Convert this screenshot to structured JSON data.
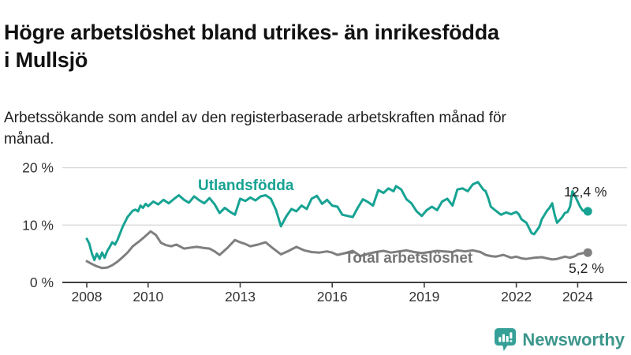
{
  "header": {
    "title": "Högre arbetslöshet bland utrikes- än inrikesfödda i Mullsjö",
    "subtitle": "Arbetssökande som andel av den registerbaserade arbetskraften månad för månad."
  },
  "chart_data": {
    "type": "line",
    "title": "Högre arbetslöshet bland utrikes- än inrikesfödda i Mullsjö",
    "xlabel": "",
    "ylabel": "",
    "ylim": [
      0,
      20
    ],
    "grid": "horizontal",
    "legend_position": "inline-labels",
    "x_ticks": [
      2008,
      2010,
      2013,
      2016,
      2019,
      2022,
      2024
    ],
    "x_tick_labels": [
      "2008",
      "2010",
      "2013",
      "2016",
      "2019",
      "2022",
      "2024"
    ],
    "y_ticks": [
      0,
      10,
      20
    ],
    "y_tick_labels": [
      "0 %",
      "10 %",
      "20 %"
    ],
    "series": [
      {
        "name": "Utlandsfödda",
        "color": "#17a393",
        "end_label": "12,4 %",
        "end_value": 12.4,
        "x": [
          2008.0,
          2008.08,
          2008.17,
          2008.25,
          2008.33,
          2008.42,
          2008.5,
          2008.58,
          2008.67,
          2008.75,
          2008.83,
          2008.92,
          2009.0,
          2009.17,
          2009.33,
          2009.5,
          2009.58,
          2009.67,
          2009.75,
          2009.83,
          2009.92,
          2010.0,
          2010.17,
          2010.33,
          2010.5,
          2010.67,
          2010.83,
          2011.0,
          2011.17,
          2011.33,
          2011.5,
          2011.67,
          2011.83,
          2012.0,
          2012.17,
          2012.33,
          2012.5,
          2012.67,
          2012.83,
          2013.0,
          2013.17,
          2013.33,
          2013.5,
          2013.67,
          2013.83,
          2014.0,
          2014.17,
          2014.33,
          2014.5,
          2014.67,
          2014.83,
          2015.0,
          2015.17,
          2015.33,
          2015.5,
          2015.67,
          2015.83,
          2016.0,
          2016.17,
          2016.33,
          2016.5,
          2016.67,
          2016.83,
          2017.0,
          2017.17,
          2017.33,
          2017.5,
          2017.67,
          2017.83,
          2018.0,
          2018.08,
          2018.25,
          2018.42,
          2018.58,
          2018.75,
          2018.92,
          2019.08,
          2019.25,
          2019.42,
          2019.58,
          2019.75,
          2019.92,
          2020.08,
          2020.25,
          2020.42,
          2020.58,
          2020.75,
          2020.92,
          2021.0,
          2021.08,
          2021.17,
          2021.33,
          2021.5,
          2021.67,
          2021.83,
          2022.0,
          2022.08,
          2022.17,
          2022.33,
          2022.5,
          2022.58,
          2022.75,
          2022.83,
          2023.0,
          2023.08,
          2023.17,
          2023.25,
          2023.33,
          2023.5,
          2023.58,
          2023.67,
          2023.75,
          2023.83,
          2023.92,
          2024.0,
          2024.08,
          2024.17,
          2024.33
        ],
        "values": [
          7.6,
          6.8,
          5.0,
          3.9,
          5.0,
          4.1,
          5.2,
          4.3,
          5.5,
          6.2,
          7.0,
          6.6,
          7.4,
          9.7,
          11.4,
          12.5,
          12.7,
          12.4,
          13.4,
          13.0,
          13.7,
          13.3,
          14.1,
          13.6,
          14.4,
          13.8,
          14.5,
          15.2,
          14.4,
          13.9,
          15.0,
          14.3,
          13.8,
          14.7,
          13.6,
          12.1,
          13.0,
          12.3,
          11.8,
          14.6,
          14.2,
          14.8,
          14.3,
          15.0,
          15.2,
          14.6,
          12.6,
          9.8,
          11.5,
          12.8,
          12.4,
          13.4,
          12.8,
          14.6,
          15.1,
          13.7,
          14.4,
          13.4,
          13.2,
          11.8,
          11.6,
          11.4,
          13.0,
          14.5,
          14.0,
          13.4,
          16.1,
          15.6,
          16.4,
          15.9,
          16.8,
          16.2,
          14.5,
          13.8,
          12.4,
          11.6,
          12.6,
          13.2,
          12.6,
          14.1,
          14.6,
          13.4,
          16.2,
          16.4,
          15.9,
          17.1,
          17.5,
          16.2,
          15.9,
          14.8,
          13.2,
          12.5,
          11.8,
          12.2,
          11.9,
          12.3,
          11.9,
          11.0,
          10.4,
          8.6,
          8.4,
          9.7,
          11.0,
          12.5,
          13.0,
          13.8,
          11.8,
          10.4,
          11.4,
          12.1,
          12.3,
          13.2,
          15.9,
          15.0,
          14.1,
          13.2,
          12.5,
          12.4
        ]
      },
      {
        "name": "Total arbetslöshet",
        "color": "#7f7f7f",
        "end_label": "5,2 %",
        "end_value": 5.2,
        "x": [
          2008.0,
          2008.17,
          2008.33,
          2008.5,
          2008.67,
          2008.83,
          2009.0,
          2009.17,
          2009.33,
          2009.5,
          2009.67,
          2009.83,
          2010.0,
          2010.08,
          2010.25,
          2010.42,
          2010.58,
          2010.75,
          2010.92,
          2011.17,
          2011.42,
          2011.58,
          2011.83,
          2012.0,
          2012.17,
          2012.33,
          2012.58,
          2012.83,
          2013.0,
          2013.17,
          2013.33,
          2013.58,
          2013.83,
          2014.08,
          2014.33,
          2014.58,
          2014.83,
          2015.08,
          2015.33,
          2015.58,
          2015.83,
          2016.0,
          2016.17,
          2016.42,
          2016.67,
          2016.92,
          2017.17,
          2017.42,
          2017.67,
          2017.92,
          2018.17,
          2018.42,
          2018.67,
          2018.92,
          2019.17,
          2019.42,
          2019.67,
          2019.92,
          2020.08,
          2020.33,
          2020.58,
          2020.83,
          2021.0,
          2021.17,
          2021.33,
          2021.58,
          2021.83,
          2022.0,
          2022.17,
          2022.33,
          2022.58,
          2022.83,
          2023.0,
          2023.17,
          2023.33,
          2023.58,
          2023.75,
          2023.92,
          2024.0,
          2024.17,
          2024.33
        ],
        "values": [
          3.7,
          3.2,
          2.8,
          2.5,
          2.6,
          3.0,
          3.6,
          4.4,
          5.2,
          6.3,
          7.0,
          7.7,
          8.5,
          8.9,
          8.3,
          6.9,
          6.5,
          6.3,
          6.6,
          5.9,
          6.1,
          6.2,
          6.0,
          5.9,
          5.4,
          4.8,
          6.0,
          7.4,
          7.0,
          6.7,
          6.3,
          6.6,
          7.0,
          5.9,
          4.9,
          5.5,
          6.2,
          5.6,
          5.3,
          5.2,
          5.4,
          5.2,
          4.8,
          5.1,
          5.5,
          4.6,
          5.0,
          5.3,
          5.5,
          5.2,
          5.4,
          5.6,
          5.3,
          5.1,
          5.3,
          5.5,
          5.4,
          5.3,
          5.6,
          5.4,
          5.6,
          5.3,
          4.8,
          4.6,
          4.5,
          4.8,
          4.3,
          4.5,
          4.2,
          4.1,
          4.3,
          4.4,
          4.2,
          4.0,
          4.1,
          4.5,
          4.3,
          4.6,
          4.9,
          5.1,
          5.2
        ]
      }
    ]
  },
  "footer": {
    "brand": "Newsworthy"
  },
  "colors": {
    "accent_teal": "#17a393",
    "series_gray": "#7f7f7f",
    "logo_teal": "#35a097",
    "logo_text": "#3b968b",
    "axis_text": "#333333",
    "gridline": "#d9d9d9",
    "baseline": "#404040"
  }
}
